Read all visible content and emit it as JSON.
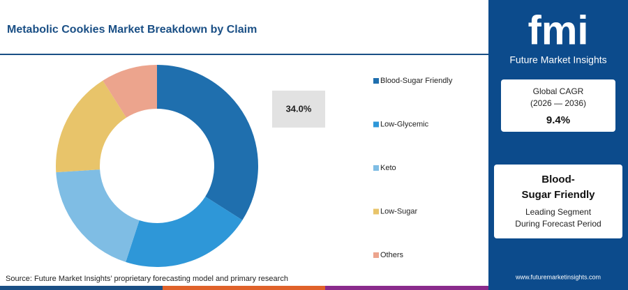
{
  "chart_data": {
    "type": "donut",
    "title": "Metabolic Cookies Market Breakdown by Claim",
    "categories": [
      "Blood-Sugar Friendly",
      "Low-Glycemic",
      "Keto",
      "Low-Sugar",
      "Others"
    ],
    "values": [
      34.0,
      21,
      19,
      17,
      9
    ],
    "value_labels": [
      "34.0%",
      null,
      null,
      null,
      null
    ],
    "colors": [
      "#1f6fae",
      "#2e97d8",
      "#7fbde4",
      "#e8c46a",
      "#eca48d"
    ],
    "source": "Source: Future Market Insights’ proprietary forecasting model and primary research"
  },
  "sidebar": {
    "logo": "fmi",
    "brand": "Future Market Insights",
    "cagr_label": "Global CAGR",
    "cagr_period": "(2026 — 2036)",
    "cagr_value": "9.4%",
    "segment": "Blood-Sugar Friendly",
    "segment_note_1": "Leading Segment",
    "segment_note_2": "During Forecast Period",
    "url": "www.futuremarketinsights.com"
  }
}
